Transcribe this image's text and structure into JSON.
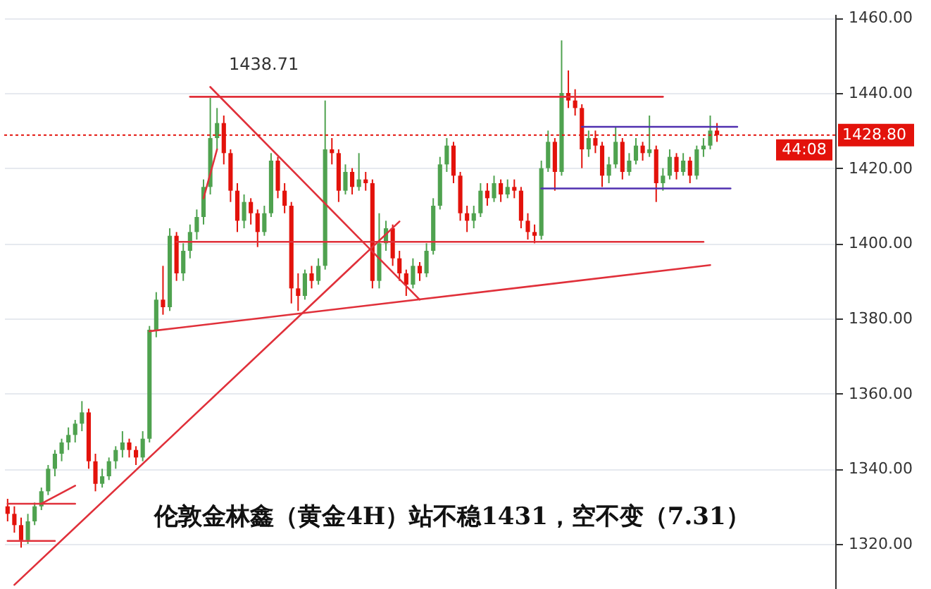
{
  "chart_data": {
    "type": "candlestick",
    "categories": [
      null,
      null,
      null,
      null,
      null,
      null,
      null,
      null,
      null,
      null,
      null,
      null,
      null,
      null,
      null,
      null,
      null,
      null,
      null,
      null,
      null,
      null,
      null,
      null,
      null,
      null,
      null,
      null,
      null,
      null,
      null,
      null,
      null,
      null,
      null,
      null,
      null,
      null,
      null,
      null,
      null,
      null,
      null,
      null,
      null,
      null,
      null,
      null,
      null,
      null,
      null,
      null,
      null,
      null,
      null,
      null,
      null,
      null,
      null,
      null,
      null,
      null,
      null,
      null,
      null,
      null,
      null,
      null,
      null,
      null,
      null,
      null,
      null,
      null,
      null,
      null,
      null,
      null,
      null,
      null,
      null,
      null,
      null,
      null,
      null,
      null,
      null,
      null,
      null,
      null,
      null,
      null,
      null,
      null,
      null,
      null,
      null,
      null,
      null,
      null,
      null,
      null,
      null,
      null,
      null,
      null,
      null,
      null,
      null,
      null,
      null,
      null,
      null,
      null,
      null,
      null,
      null,
      null,
      null,
      null,
      null,
      null,
      null
    ],
    "ohlc": [
      [
        1330,
        1332,
        1326,
        1328
      ],
      [
        1328,
        1330,
        1323,
        1325
      ],
      [
        1325,
        1327,
        1319,
        1321
      ],
      [
        1321,
        1328,
        1320,
        1326
      ],
      [
        1326,
        1331,
        1325,
        1330
      ],
      [
        1330,
        1335,
        1329,
        1334
      ],
      [
        1334,
        1341,
        1333,
        1340
      ],
      [
        1340,
        1345,
        1338,
        1344
      ],
      [
        1344,
        1348,
        1342,
        1347
      ],
      [
        1347,
        1351,
        1345,
        1349
      ],
      [
        1349,
        1353,
        1347,
        1352
      ],
      [
        1352,
        1358,
        1350,
        1355
      ],
      [
        1355,
        1356,
        1340,
        1342
      ],
      [
        1342,
        1344,
        1334,
        1336
      ],
      [
        1336,
        1340,
        1335,
        1338
      ],
      [
        1338,
        1343,
        1337,
        1342
      ],
      [
        1342,
        1346,
        1340,
        1345
      ],
      [
        1345,
        1350,
        1343,
        1347
      ],
      [
        1347,
        1348,
        1343,
        1345
      ],
      [
        1345,
        1346,
        1341,
        1343
      ],
      [
        1343,
        1350,
        1342,
        1348
      ],
      [
        1348,
        1378,
        1347,
        1377
      ],
      [
        1377,
        1387,
        1375,
        1385
      ],
      [
        1385,
        1394,
        1381,
        1383
      ],
      [
        1383,
        1404,
        1382,
        1402
      ],
      [
        1402,
        1403,
        1390,
        1392
      ],
      [
        1392,
        1400,
        1390,
        1398
      ],
      [
        1398,
        1405,
        1396,
        1403
      ],
      [
        1403,
        1409,
        1401,
        1407
      ],
      [
        1407,
        1417,
        1405,
        1415
      ],
      [
        1415,
        1438.71,
        1413,
        1428
      ],
      [
        1428,
        1436,
        1425,
        1432
      ],
      [
        1432,
        1434,
        1421,
        1424
      ],
      [
        1424,
        1425,
        1411,
        1414
      ],
      [
        1414,
        1416,
        1403,
        1406
      ],
      [
        1406,
        1413,
        1404,
        1411
      ],
      [
        1411,
        1412,
        1405,
        1408
      ],
      [
        1408,
        1409,
        1399,
        1403
      ],
      [
        1403,
        1410,
        1402,
        1408
      ],
      [
        1408,
        1424,
        1407,
        1422
      ],
      [
        1422,
        1423,
        1412,
        1414
      ],
      [
        1414,
        1416,
        1408,
        1410
      ],
      [
        1410,
        1411,
        1384,
        1388
      ],
      [
        1388,
        1392,
        1382,
        1386
      ],
      [
        1386,
        1393,
        1385,
        1392
      ],
      [
        1392,
        1394,
        1388,
        1390
      ],
      [
        1390,
        1396,
        1389,
        1394
      ],
      [
        1394,
        1438,
        1393,
        1425
      ],
      [
        1425,
        1428,
        1421,
        1424
      ],
      [
        1424,
        1425,
        1411,
        1414
      ],
      [
        1414,
        1421,
        1413,
        1419
      ],
      [
        1419,
        1420,
        1413,
        1415
      ],
      [
        1415,
        1424,
        1414,
        1417
      ],
      [
        1417,
        1419,
        1414,
        1416
      ],
      [
        1416,
        1417,
        1388,
        1390
      ],
      [
        1390,
        1408,
        1388,
        1400
      ],
      [
        1400,
        1406,
        1398,
        1404
      ],
      [
        1404,
        1405,
        1394,
        1396
      ],
      [
        1396,
        1398,
        1390,
        1392
      ],
      [
        1392,
        1393,
        1386,
        1389
      ],
      [
        1389,
        1396,
        1388,
        1394
      ],
      [
        1394,
        1395,
        1390,
        1392
      ],
      [
        1392,
        1400,
        1391,
        1398
      ],
      [
        1398,
        1412,
        1397,
        1410
      ],
      [
        1410,
        1423,
        1409,
        1421
      ],
      [
        1421,
        1428,
        1419,
        1426
      ],
      [
        1426,
        1427,
        1416,
        1418
      ],
      [
        1418,
        1419,
        1406,
        1408
      ],
      [
        1408,
        1410,
        1403,
        1406
      ],
      [
        1406,
        1410,
        1404,
        1408
      ],
      [
        1408,
        1416,
        1407,
        1414
      ],
      [
        1414,
        1416,
        1410,
        1412
      ],
      [
        1412,
        1418,
        1411,
        1416
      ],
      [
        1416,
        1417,
        1411,
        1413
      ],
      [
        1413,
        1417,
        1412,
        1415
      ],
      [
        1415,
        1417,
        1412,
        1414
      ],
      [
        1414,
        1415,
        1404,
        1406
      ],
      [
        1406,
        1408,
        1401,
        1403
      ],
      [
        1403,
        1405,
        1400,
        1402
      ],
      [
        1402,
        1422,
        1401,
        1420
      ],
      [
        1420,
        1430,
        1419,
        1427
      ],
      [
        1427,
        1428,
        1414,
        1419
      ],
      [
        1419,
        1454,
        1418,
        1440
      ],
      [
        1440,
        1446,
        1436,
        1438
      ],
      [
        1438,
        1441,
        1434,
        1436
      ],
      [
        1436,
        1437,
        1420,
        1425
      ],
      [
        1425,
        1430,
        1423,
        1428
      ],
      [
        1428,
        1430,
        1424,
        1426
      ],
      [
        1426,
        1427,
        1415,
        1418
      ],
      [
        1418,
        1423,
        1416,
        1421
      ],
      [
        1421,
        1431,
        1420,
        1427
      ],
      [
        1427,
        1428,
        1417,
        1419
      ],
      [
        1419,
        1424,
        1418,
        1422
      ],
      [
        1422,
        1428,
        1421,
        1426
      ],
      [
        1426,
        1427,
        1422,
        1424
      ],
      [
        1424,
        1434,
        1423,
        1425
      ],
      [
        1425,
        1426,
        1411,
        1416
      ],
      [
        1416,
        1420,
        1414,
        1418
      ],
      [
        1418,
        1425,
        1417,
        1423
      ],
      [
        1423,
        1424,
        1417,
        1419
      ],
      [
        1419,
        1424,
        1418,
        1422
      ],
      [
        1422,
        1423,
        1416,
        1418
      ],
      [
        1418,
        1426,
        1417,
        1425
      ],
      [
        1425,
        1428,
        1423,
        1426
      ],
      [
        1426,
        1434,
        1425,
        1430
      ],
      [
        1430,
        1432,
        1427,
        1428.8
      ],
      null,
      null,
      null,
      null,
      null,
      null,
      null,
      null,
      null,
      null,
      null,
      null,
      null,
      null,
      null,
      null,
      null
    ],
    "series": [
      {
        "type": "line",
        "color": "#e0303a",
        "values": [
          null,
          null,
          null,
          null,
          null,
          null,
          null,
          null,
          null,
          null,
          null,
          null,
          null,
          null,
          null,
          null,
          null,
          null,
          null,
          null,
          null,
          null,
          null,
          null,
          null,
          null,
          null,
          1439,
          null,
          null,
          null,
          null,
          null,
          null,
          null,
          null,
          null,
          null,
          null,
          null,
          null,
          null,
          null,
          null,
          null,
          null,
          null,
          null,
          null,
          null,
          null,
          null,
          null,
          null,
          null,
          null,
          null,
          null,
          null,
          null,
          null,
          null,
          null,
          null,
          null,
          null,
          null,
          null,
          null,
          null,
          null,
          null,
          null,
          null,
          null,
          null,
          null,
          null,
          null,
          null,
          null,
          null,
          null,
          null,
          null,
          null,
          null,
          null,
          null,
          null,
          null,
          null,
          null,
          null,
          null,
          null,
          null,
          1439,
          null,
          null,
          null,
          null,
          null,
          null,
          null,
          null,
          null,
          null,
          null,
          null,
          null,
          null,
          null,
          null,
          null,
          null,
          null,
          null,
          null,
          null,
          null,
          null,
          null
        ]
      },
      {
        "type": "line",
        "color": "#e0303a",
        "values": [
          null,
          null,
          null,
          null,
          null,
          null,
          null,
          null,
          null,
          null,
          null,
          null,
          null,
          null,
          null,
          null,
          null,
          null,
          null,
          null,
          null,
          null,
          null,
          null,
          null,
          1400.4,
          null,
          null,
          null,
          null,
          null,
          null,
          null,
          null,
          null,
          null,
          null,
          null,
          null,
          null,
          null,
          null,
          null,
          null,
          null,
          null,
          null,
          null,
          null,
          null,
          null,
          null,
          null,
          null,
          null,
          null,
          null,
          null,
          null,
          null,
          null,
          null,
          null,
          null,
          null,
          null,
          null,
          null,
          null,
          null,
          null,
          null,
          null,
          null,
          null,
          null,
          null,
          null,
          null,
          null,
          null,
          null,
          null,
          null,
          null,
          null,
          null,
          null,
          null,
          null,
          null,
          null,
          null,
          null,
          null,
          null,
          null,
          null,
          null,
          null,
          null,
          null,
          null,
          1400.4,
          null,
          null,
          null,
          null,
          null,
          null,
          null,
          null,
          null,
          null,
          null,
          null,
          null,
          null,
          null,
          null,
          null,
          null,
          null
        ]
      },
      {
        "type": "line",
        "color": "#e0303a",
        "values": [
          null,
          null,
          null,
          null,
          null,
          null,
          null,
          null,
          null,
          null,
          null,
          null,
          null,
          null,
          null,
          null,
          null,
          null,
          null,
          null,
          null,
          null,
          null,
          null,
          null,
          null,
          null,
          null,
          null,
          null,
          1441.6,
          null,
          null,
          null,
          null,
          null,
          null,
          null,
          null,
          null,
          null,
          null,
          null,
          null,
          null,
          null,
          null,
          null,
          null,
          null,
          null,
          null,
          null,
          null,
          null,
          null,
          null,
          null,
          null,
          null,
          null,
          1385,
          null,
          null,
          null,
          null,
          null,
          null,
          null,
          null,
          null,
          null,
          null,
          null,
          null,
          null,
          null,
          null,
          null,
          null,
          null,
          null,
          null,
          null,
          null,
          null,
          null,
          null,
          null,
          null,
          null,
          null,
          null,
          null,
          null,
          null,
          null,
          null,
          null,
          null,
          null,
          null,
          null,
          null,
          null,
          null,
          null,
          null,
          null,
          null,
          null,
          null,
          null,
          null,
          null,
          null,
          null,
          null,
          null,
          null,
          null,
          null,
          null
        ]
      },
      {
        "type": "line",
        "color": "#e0303a",
        "values": [
          null,
          1309.1,
          null,
          null,
          null,
          null,
          null,
          null,
          null,
          null,
          null,
          null,
          null,
          null,
          null,
          null,
          null,
          null,
          null,
          null,
          null,
          null,
          null,
          null,
          null,
          null,
          null,
          null,
          null,
          null,
          null,
          null,
          null,
          null,
          null,
          null,
          null,
          null,
          null,
          null,
          null,
          null,
          null,
          null,
          null,
          null,
          null,
          null,
          null,
          null,
          null,
          null,
          null,
          null,
          null,
          null,
          null,
          null,
          1405.8,
          null,
          null,
          null,
          null,
          null,
          null,
          null,
          null,
          null,
          null,
          null,
          null,
          null,
          null,
          null,
          null,
          null,
          null,
          null,
          null,
          null,
          null,
          null,
          null,
          null,
          null,
          null,
          null,
          null,
          null,
          null,
          null,
          null,
          null,
          null,
          null,
          null,
          null,
          null,
          null,
          null,
          null,
          null,
          null,
          null,
          null,
          null,
          null,
          null,
          null,
          null,
          null,
          null,
          null,
          null,
          null,
          null,
          null,
          null,
          null,
          null,
          null,
          null,
          null
        ]
      },
      {
        "type": "line",
        "color": "#e0303a",
        "values": [
          null,
          null,
          null,
          null,
          null,
          null,
          null,
          null,
          null,
          null,
          null,
          null,
          null,
          null,
          null,
          null,
          null,
          null,
          null,
          null,
          null,
          null,
          null,
          null,
          null,
          null,
          null,
          null,
          null,
          1412,
          null,
          1425,
          null,
          null,
          null,
          null,
          null,
          null,
          null,
          null,
          null,
          null,
          null,
          null,
          null,
          null,
          null,
          null,
          null,
          null,
          null,
          null,
          null,
          null,
          null,
          null,
          null,
          null,
          null,
          null,
          null,
          null,
          null,
          null,
          null,
          null,
          null,
          null,
          null,
          null,
          null,
          null,
          null,
          null,
          null,
          null,
          null,
          null,
          null,
          null,
          null,
          null,
          null,
          null,
          null,
          null,
          null,
          null,
          null,
          null,
          null,
          null,
          null,
          null,
          null,
          null,
          null,
          null,
          null,
          null,
          null,
          null,
          null,
          null,
          null,
          null,
          null,
          null,
          null,
          null,
          null,
          null,
          null,
          null,
          null,
          null,
          null,
          null,
          null,
          null,
          null,
          null,
          null
        ]
      },
      {
        "type": "line",
        "color": "#e0303a",
        "values": [
          null,
          null,
          null,
          null,
          null,
          null,
          null,
          null,
          null,
          null,
          null,
          null,
          null,
          null,
          null,
          null,
          null,
          null,
          null,
          null,
          null,
          1376.6,
          null,
          null,
          null,
          null,
          null,
          null,
          null,
          null,
          null,
          null,
          null,
          null,
          null,
          null,
          null,
          null,
          null,
          null,
          null,
          null,
          null,
          null,
          null,
          null,
          null,
          null,
          null,
          null,
          null,
          null,
          null,
          null,
          null,
          null,
          null,
          null,
          null,
          null,
          null,
          null,
          null,
          null,
          null,
          null,
          null,
          null,
          null,
          null,
          null,
          null,
          null,
          null,
          null,
          null,
          null,
          null,
          null,
          null,
          null,
          null,
          null,
          null,
          null,
          null,
          null,
          null,
          null,
          null,
          null,
          null,
          null,
          null,
          null,
          null,
          null,
          null,
          null,
          null,
          null,
          null,
          null,
          null,
          1394.2,
          null,
          null,
          null,
          null,
          null,
          null,
          null,
          null,
          null,
          null,
          null,
          null,
          null,
          null,
          null,
          null,
          null,
          null
        ]
      },
      {
        "type": "line",
        "color": "#e0303a",
        "values": [
          1330.7,
          null,
          null,
          null,
          null,
          null,
          null,
          null,
          null,
          null,
          1330.7,
          null,
          null,
          null,
          null,
          null,
          null,
          null,
          null,
          null,
          null,
          null,
          null,
          null,
          null,
          null,
          null,
          null,
          null,
          null,
          null,
          null,
          null,
          null,
          null,
          null,
          null,
          null,
          null,
          null,
          null,
          null,
          null,
          null,
          null,
          null,
          null,
          null,
          null,
          null,
          null,
          null,
          null,
          null,
          null,
          null,
          null,
          null,
          null,
          null,
          null,
          null,
          null,
          null,
          null,
          null,
          null,
          null,
          null,
          null,
          null,
          null,
          null,
          null,
          null,
          null,
          null,
          null,
          null,
          null,
          null,
          null,
          null,
          null,
          null,
          null,
          null,
          null,
          null,
          null,
          null,
          null,
          null,
          null,
          null,
          null,
          null,
          null,
          null,
          null,
          null,
          null,
          null,
          null,
          null,
          null,
          null,
          null,
          null,
          null,
          null,
          null,
          null,
          null,
          null,
          null,
          null,
          null,
          null,
          null,
          null,
          null,
          null
        ]
      },
      {
        "type": "line",
        "color": "#e0303a",
        "values": [
          null,
          null,
          null,
          null,
          null,
          1330.7,
          null,
          null,
          null,
          null,
          1335.5,
          null,
          null,
          null,
          null,
          null,
          null,
          null,
          null,
          null,
          null,
          null,
          null,
          null,
          null,
          null,
          null,
          null,
          null,
          null,
          null,
          null,
          null,
          null,
          null,
          null,
          null,
          null,
          null,
          null,
          null,
          null,
          null,
          null,
          null,
          null,
          null,
          null,
          null,
          null,
          null,
          null,
          null,
          null,
          null,
          null,
          null,
          null,
          null,
          null,
          null,
          null,
          null,
          null,
          null,
          null,
          null,
          null,
          null,
          null,
          null,
          null,
          null,
          null,
          null,
          null,
          null,
          null,
          null,
          null,
          null,
          null,
          null,
          null,
          null,
          null,
          null,
          null,
          null,
          null,
          null,
          null,
          null,
          null,
          null,
          null,
          null,
          null,
          null,
          null,
          null,
          null,
          null,
          null,
          null,
          null,
          null,
          null,
          null,
          null,
          null,
          null,
          null,
          null,
          null,
          null,
          null,
          null,
          null,
          null,
          null,
          null,
          null
        ]
      },
      {
        "type": "line",
        "color": "#e0303a",
        "values": [
          1320.8,
          null,
          null,
          null,
          null,
          null,
          null,
          1320.8,
          null,
          null,
          null,
          null,
          null,
          null,
          null,
          null,
          null,
          null,
          null,
          null,
          null,
          null,
          null,
          null,
          null,
          null,
          null,
          null,
          null,
          null,
          null,
          null,
          null,
          null,
          null,
          null,
          null,
          null,
          null,
          null,
          null,
          null,
          null,
          null,
          null,
          null,
          null,
          null,
          null,
          null,
          null,
          null,
          null,
          null,
          null,
          null,
          null,
          null,
          null,
          null,
          null,
          null,
          null,
          null,
          null,
          null,
          null,
          null,
          null,
          null,
          null,
          null,
          null,
          null,
          null,
          null,
          null,
          null,
          null,
          null,
          null,
          null,
          null,
          null,
          null,
          null,
          null,
          null,
          null,
          null,
          null,
          null,
          null,
          null,
          null,
          null,
          null,
          null,
          null,
          null,
          null,
          null,
          null,
          null,
          null,
          null,
          null,
          null,
          null,
          null,
          null,
          null,
          null,
          null,
          null,
          null,
          null,
          null,
          null,
          null,
          null,
          null,
          null
        ]
      },
      {
        "type": "line",
        "color": "#5030b0",
        "values": [
          null,
          null,
          null,
          null,
          null,
          null,
          null,
          null,
          null,
          null,
          null,
          null,
          null,
          null,
          null,
          null,
          null,
          null,
          null,
          null,
          null,
          null,
          null,
          null,
          null,
          null,
          null,
          null,
          null,
          null,
          null,
          null,
          null,
          null,
          null,
          null,
          null,
          null,
          null,
          null,
          null,
          null,
          null,
          null,
          null,
          null,
          null,
          null,
          null,
          null,
          null,
          null,
          null,
          null,
          null,
          null,
          null,
          null,
          null,
          null,
          null,
          null,
          null,
          null,
          null,
          null,
          null,
          null,
          null,
          null,
          null,
          null,
          null,
          null,
          null,
          null,
          null,
          null,
          null,
          null,
          null,
          null,
          null,
          null,
          null,
          1431,
          null,
          null,
          null,
          null,
          null,
          null,
          null,
          null,
          null,
          null,
          null,
          null,
          null,
          null,
          null,
          null,
          null,
          null,
          null,
          null,
          null,
          null,
          1431,
          null,
          null,
          null,
          null,
          null,
          null,
          null,
          null,
          null,
          null,
          null,
          null,
          null,
          null
        ]
      },
      {
        "type": "line",
        "color": "#5030b0",
        "values": [
          null,
          null,
          null,
          null,
          null,
          null,
          null,
          null,
          null,
          null,
          null,
          null,
          null,
          null,
          null,
          null,
          null,
          null,
          null,
          null,
          null,
          null,
          null,
          null,
          null,
          null,
          null,
          null,
          null,
          null,
          null,
          null,
          null,
          null,
          null,
          null,
          null,
          null,
          null,
          null,
          null,
          null,
          null,
          null,
          null,
          null,
          null,
          null,
          null,
          null,
          null,
          null,
          null,
          null,
          null,
          null,
          null,
          null,
          null,
          null,
          null,
          null,
          null,
          null,
          null,
          null,
          null,
          null,
          null,
          null,
          null,
          null,
          null,
          null,
          null,
          null,
          null,
          null,
          null,
          1414.6,
          null,
          null,
          null,
          null,
          null,
          null,
          null,
          null,
          null,
          null,
          null,
          null,
          null,
          null,
          null,
          null,
          null,
          null,
          null,
          null,
          null,
          null,
          null,
          null,
          null,
          null,
          null,
          1414.6,
          null,
          null,
          null,
          null,
          null,
          null,
          null,
          null,
          null,
          null,
          null,
          null,
          null,
          null,
          null
        ]
      }
    ],
    "ref_lines": [
      {
        "axis": "y",
        "value": 1428.8,
        "label": "1428.80",
        "color": "#e3120b",
        "line_style": "dotted"
      }
    ],
    "annotations": [
      "伦敦金林鑫（黄金4H）站不稳1431，空不变（7.31）",
      "44:08",
      {
        "text": "1438.71",
        "y": 1438.71
      }
    ],
    "ylim": [
      1308,
      1461
    ],
    "yticks": [
      {
        "value": 1320,
        "label": "1320.00"
      },
      {
        "value": 1340,
        "label": "1340.00"
      },
      {
        "value": 1360,
        "label": "1360.00"
      },
      {
        "value": 1380,
        "label": "1380.00"
      },
      {
        "value": 1400,
        "label": "1400.00"
      },
      {
        "value": 1420,
        "label": "1420.00"
      },
      {
        "value": 1440,
        "label": "1440.00"
      },
      {
        "value": 1460,
        "label": "1460.00"
      }
    ],
    "grid": "y",
    "tick_labels": "y"
  }
}
